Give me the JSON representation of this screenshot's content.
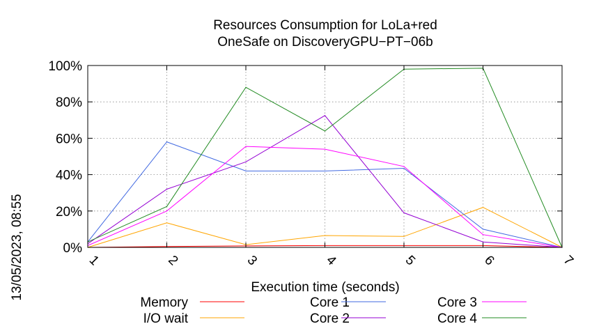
{
  "chart_data": {
    "type": "line",
    "title": [
      "Resources Consumption for LoLa+red",
      "OneSafe on DiscoveryGPU−PT−06b"
    ],
    "side_label": "13/05/2023, 08:55",
    "xlabel": "Execution time (seconds)",
    "ylabel": "",
    "x": [
      1,
      2,
      3,
      4,
      5,
      6,
      7
    ],
    "x_tick_labels": [
      "1",
      "2",
      "3",
      "4",
      "5",
      "6",
      "7"
    ],
    "xlim": [
      1,
      7
    ],
    "ylim": [
      0,
      100
    ],
    "y_ticks": [
      0,
      20,
      40,
      60,
      80,
      100
    ],
    "y_tick_labels": [
      "0%",
      "20%",
      "40%",
      "60%",
      "80%",
      "100%"
    ],
    "grid": true,
    "legend_position": "bottom",
    "series": [
      {
        "name": "Memory",
        "color": "#ff0000",
        "values": [
          0,
          0.5,
          0.8,
          1,
          1,
          1,
          0
        ]
      },
      {
        "name": "I/O wait",
        "color": "#ffa500",
        "values": [
          0,
          13.5,
          1.5,
          6.5,
          6,
          22,
          0
        ]
      },
      {
        "name": "Core 1",
        "color": "#4169e1",
        "values": [
          3,
          58,
          42,
          42,
          43.5,
          10,
          0
        ]
      },
      {
        "name": "Core 2",
        "color": "#9400d3",
        "values": [
          2,
          32,
          47,
          72.5,
          19,
          3,
          0
        ]
      },
      {
        "name": "Core 3",
        "color": "#ff00ff",
        "values": [
          1,
          20,
          55.5,
          54,
          44.5,
          7,
          0
        ]
      },
      {
        "name": "Core 4",
        "color": "#228b22",
        "values": [
          3,
          22.5,
          88,
          64,
          98,
          98.5,
          0
        ]
      }
    ]
  }
}
